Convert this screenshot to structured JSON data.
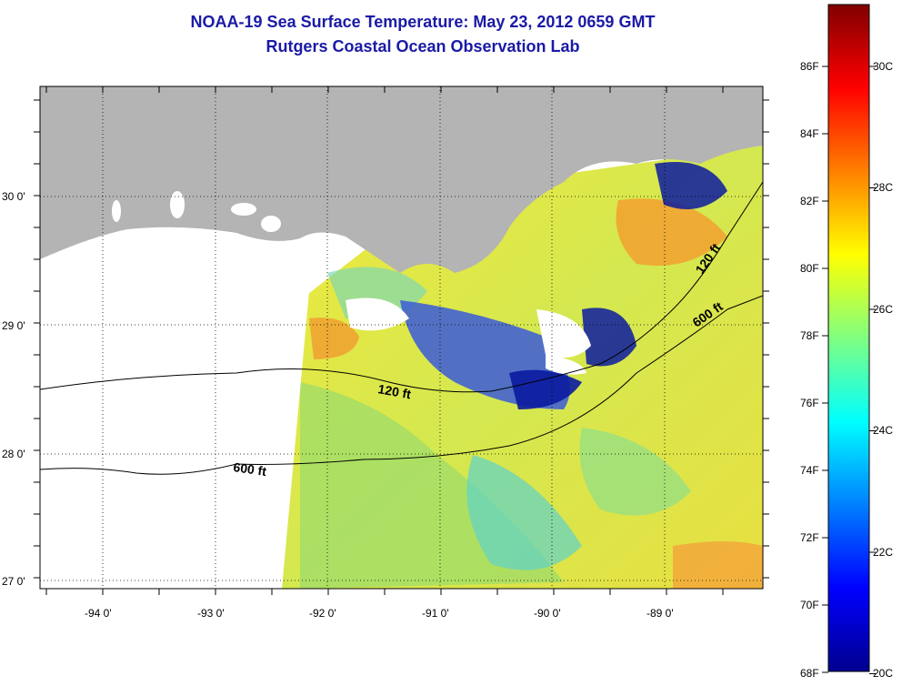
{
  "title": {
    "line1": "NOAA-19 Sea Surface Temperature:  May 23, 2012 0659 GMT",
    "line2": "Rutgers Coastal Ocean Observation Lab"
  },
  "map": {
    "lat_labels": [
      "30 0'",
      "29 0'",
      "28 0'",
      "27 0'"
    ],
    "lon_labels": [
      "-94 0'",
      "-93 0'",
      "-92 0'",
      "-91 0'",
      "-90 0'",
      "-89 0'"
    ],
    "contour_labels": [
      {
        "text": "120 ft",
        "id": "contour-120ft-west"
      },
      {
        "text": "600 ft",
        "id": "contour-600ft-west"
      },
      {
        "text": "120 ft",
        "id": "contour-120ft-east"
      },
      {
        "text": "600 ft",
        "id": "contour-600ft-east"
      }
    ],
    "colors": {
      "land": "#b4b4b4",
      "no_data": "#ffffff",
      "contour": "#000000"
    }
  },
  "colorbar": {
    "fahrenheit_labels": [
      "86F",
      "84F",
      "82F",
      "80F",
      "78F",
      "76F",
      "74F",
      "72F",
      "70F",
      "68F"
    ],
    "celsius_labels": [
      "30C",
      "28C",
      "26C",
      "24C",
      "22C",
      "20C"
    ],
    "colors": [
      "#00008f",
      "#0000ff",
      "#0080ff",
      "#00ffff",
      "#80ff80",
      "#ffff00",
      "#ff8000",
      "#ff0000",
      "#800000"
    ]
  }
}
